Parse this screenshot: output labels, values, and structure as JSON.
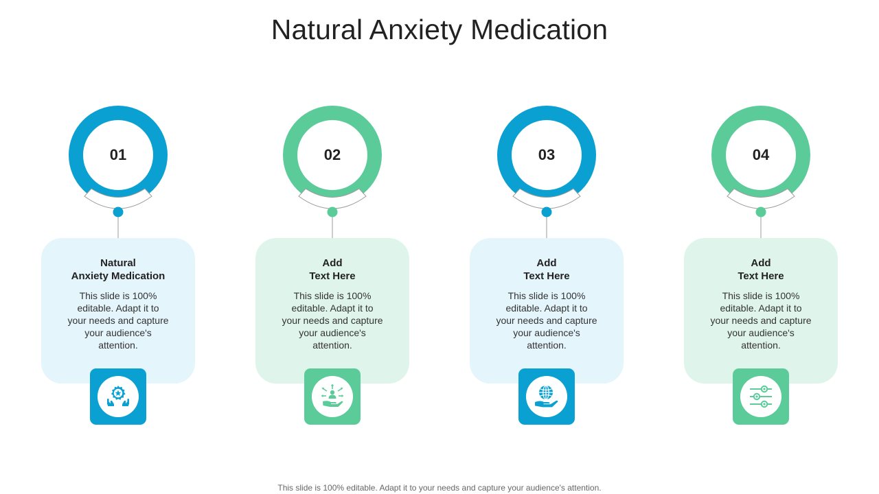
{
  "title": "Natural Anxiety Medication",
  "colors": {
    "blue": "#0AA0D2",
    "green": "#5CCB9A",
    "blue_card": "#E4F5FC",
    "green_card": "#DFF4EA"
  },
  "steps": [
    {
      "number": "01",
      "title_line1": "Natural",
      "title_line2": "Anxiety Medication",
      "body": "This slide is 100% editable. Adapt it to your needs and capture your audience's attention.",
      "theme": "blue",
      "icon": "hands-gear-star-icon"
    },
    {
      "number": "02",
      "title_line1": "Add",
      "title_line2": "Text Here",
      "body": "This slide is 100% editable. Adapt it to your needs and capture your audience's attention.",
      "theme": "green",
      "icon": "hand-person-arrows-icon"
    },
    {
      "number": "03",
      "title_line1": "Add",
      "title_line2": "Text Here",
      "body": "This slide is 100% editable. Adapt it to your needs and capture your audience's attention.",
      "theme": "blue",
      "icon": "hand-globe-icon"
    },
    {
      "number": "04",
      "title_line1": "Add",
      "title_line2": "Text Here",
      "body": "This slide is 100% editable. Adapt it to your needs and capture your audience's attention.",
      "theme": "green",
      "icon": "sliders-icon"
    }
  ],
  "footer": "This slide is 100% editable. Adapt it to your needs and capture your audience's attention."
}
